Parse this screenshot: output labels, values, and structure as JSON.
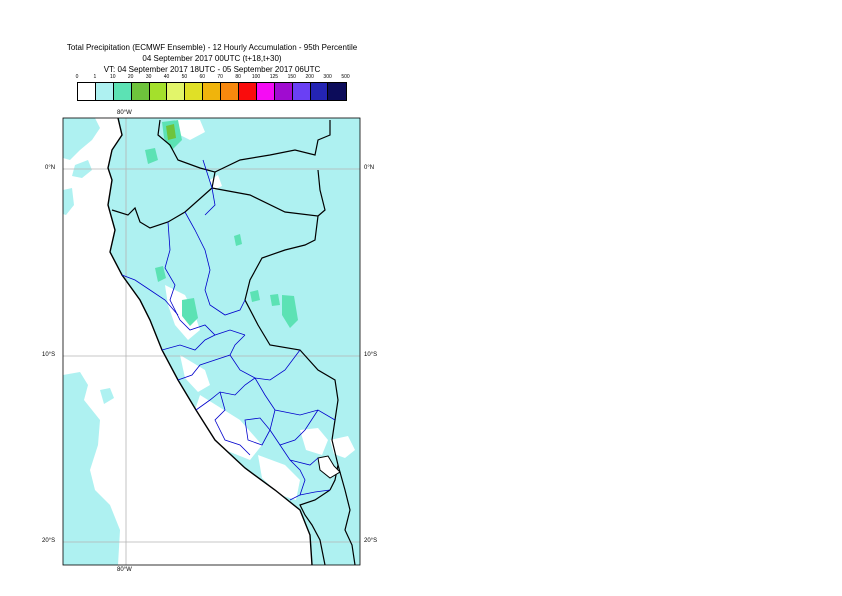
{
  "title": {
    "line1": "Total Precipitation (ECMWF Ensemble) - 12 Hourly Accumulation - 95th Percentile",
    "line2": "04 September 2017 00UTC (t+18,t+30)",
    "line3": "VT: 04 September 2017 18UTC - 05 September 2017 06UTC"
  },
  "legend": {
    "thresholds": [
      "0",
      "1",
      "10",
      "20",
      "30",
      "40",
      "50",
      "60",
      "70",
      "80",
      "100",
      "125",
      "150",
      "200",
      "300",
      "500"
    ],
    "colors": [
      "#ffffff",
      "#aef1f1",
      "#5ce2b4",
      "#6ec43c",
      "#a4e02c",
      "#e2f56a",
      "#e0e026",
      "#f0b40c",
      "#f7880e",
      "#fa0c0c",
      "#f50cf4",
      "#a00cd0",
      "#6a40f4",
      "#2424b4",
      "#0c0c5a"
    ]
  },
  "map": {
    "colors": {
      "land": "#ffffff",
      "light_precip": "#aef1f1",
      "moderate_precip": "#5ce2b4",
      "heavy_precip": "#6ec43c",
      "border": "#000000",
      "admin_border": "#0000cc",
      "gridline": "#b4b4b4"
    },
    "labels": {
      "lon_top": "80°W",
      "lon_bottom": "80°W",
      "lat_0_left": "0°N",
      "lat_0_right": "0°N",
      "lat_10_left": "10°S",
      "lat_10_right": "10°S",
      "lat_20_left": "20°S",
      "lat_20_right": "20°S"
    }
  }
}
